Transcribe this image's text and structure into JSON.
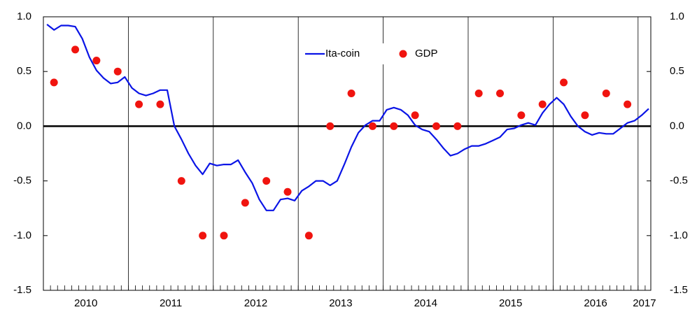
{
  "chart_data": {
    "type": "line",
    "xlim": [
      2010,
      2017.15
    ],
    "xticks": [
      2010,
      2011,
      2012,
      2013,
      2014,
      2015,
      2016,
      2017
    ],
    "ylim": [
      -1.5,
      1.0
    ],
    "yticks": [
      {
        "value": -1.5,
        "label": "-1.5"
      },
      {
        "value": -1.0,
        "label": "-1.0"
      },
      {
        "value": -0.5,
        "label": "-0.5"
      },
      {
        "value": 0.0,
        "label": "0.0"
      },
      {
        "value": 0.5,
        "label": "0.5"
      },
      {
        "value": 1.0,
        "label": "1.0"
      }
    ],
    "y2lim": [
      -1.5,
      1.0
    ],
    "y2ticks": [
      {
        "value": -1.5,
        "label": "-1.5"
      },
      {
        "value": -1.0,
        "label": "-1.0"
      },
      {
        "value": -0.5,
        "label": "-0.5"
      },
      {
        "value": 0.0,
        "label": "0.0"
      },
      {
        "value": 0.5,
        "label": "0.5"
      },
      {
        "value": 1.0,
        "label": "1.0"
      }
    ],
    "zero_line": true,
    "year_lines": true,
    "series": [
      {
        "name": "Ita-coin",
        "type": "line",
        "color": "#0a14e6",
        "x": [
          2010.042,
          2010.125,
          2010.208,
          2010.292,
          2010.375,
          2010.458,
          2010.542,
          2010.625,
          2010.708,
          2010.792,
          2010.875,
          2010.958,
          2011.042,
          2011.125,
          2011.208,
          2011.292,
          2011.375,
          2011.458,
          2011.542,
          2011.625,
          2011.708,
          2011.792,
          2011.875,
          2011.958,
          2012.042,
          2012.125,
          2012.208,
          2012.292,
          2012.375,
          2012.458,
          2012.542,
          2012.625,
          2012.708,
          2012.792,
          2012.875,
          2012.958,
          2013.042,
          2013.125,
          2013.208,
          2013.292,
          2013.375,
          2013.458,
          2013.542,
          2013.625,
          2013.708,
          2013.792,
          2013.875,
          2013.958,
          2014.042,
          2014.125,
          2014.208,
          2014.292,
          2014.375,
          2014.458,
          2014.542,
          2014.625,
          2014.708,
          2014.792,
          2014.875,
          2014.958,
          2015.042,
          2015.125,
          2015.208,
          2015.292,
          2015.375,
          2015.458,
          2015.542,
          2015.625,
          2015.708,
          2015.792,
          2015.875,
          2015.958,
          2016.042,
          2016.125,
          2016.208,
          2016.292,
          2016.375,
          2016.458,
          2016.542,
          2016.625,
          2016.708,
          2016.792,
          2016.875,
          2016.958,
          2017.042,
          2017.125
        ],
        "values": [
          0.93,
          0.88,
          0.92,
          0.92,
          0.91,
          0.8,
          0.63,
          0.51,
          0.44,
          0.39,
          0.4,
          0.45,
          0.35,
          0.3,
          0.28,
          0.3,
          0.33,
          0.33,
          0.0,
          -0.12,
          -0.25,
          -0.36,
          -0.44,
          -0.34,
          -0.36,
          -0.35,
          -0.35,
          -0.31,
          -0.42,
          -0.52,
          -0.67,
          -0.77,
          -0.77,
          -0.67,
          -0.66,
          -0.68,
          -0.59,
          -0.55,
          -0.5,
          -0.5,
          -0.54,
          -0.5,
          -0.35,
          -0.19,
          -0.06,
          0.01,
          0.05,
          0.05,
          0.15,
          0.17,
          0.15,
          0.1,
          0.01,
          -0.03,
          -0.05,
          -0.12,
          -0.2,
          -0.27,
          -0.25,
          -0.21,
          -0.18,
          -0.18,
          -0.16,
          -0.13,
          -0.1,
          -0.03,
          -0.02,
          0.01,
          0.03,
          0.01,
          0.12,
          0.2,
          0.26,
          0.2,
          0.09,
          0.0,
          -0.05,
          -0.08,
          -0.06,
          -0.07,
          -0.07,
          -0.02,
          0.03,
          0.05,
          0.1,
          0.16
        ]
      },
      {
        "name": "GDP",
        "type": "scatter",
        "color": "#f0140f",
        "x": [
          2010.125,
          2010.375,
          2010.625,
          2010.875,
          2011.125,
          2011.375,
          2011.625,
          2011.875,
          2012.125,
          2012.375,
          2012.625,
          2012.875,
          2013.125,
          2013.375,
          2013.625,
          2013.875,
          2014.125,
          2014.375,
          2014.625,
          2014.875,
          2015.125,
          2015.375,
          2015.625,
          2015.875,
          2016.125,
          2016.375,
          2016.625,
          2016.875
        ],
        "values": [
          0.4,
          0.7,
          0.6,
          0.5,
          0.2,
          0.2,
          -0.5,
          -1.0,
          -1.0,
          -0.7,
          -0.5,
          -0.6,
          -1.0,
          0.0,
          0.3,
          0.0,
          0.0,
          0.1,
          0.0,
          0.0,
          0.3,
          0.3,
          0.1,
          0.2,
          0.4,
          0.1,
          0.3,
          0.2
        ]
      }
    ]
  }
}
